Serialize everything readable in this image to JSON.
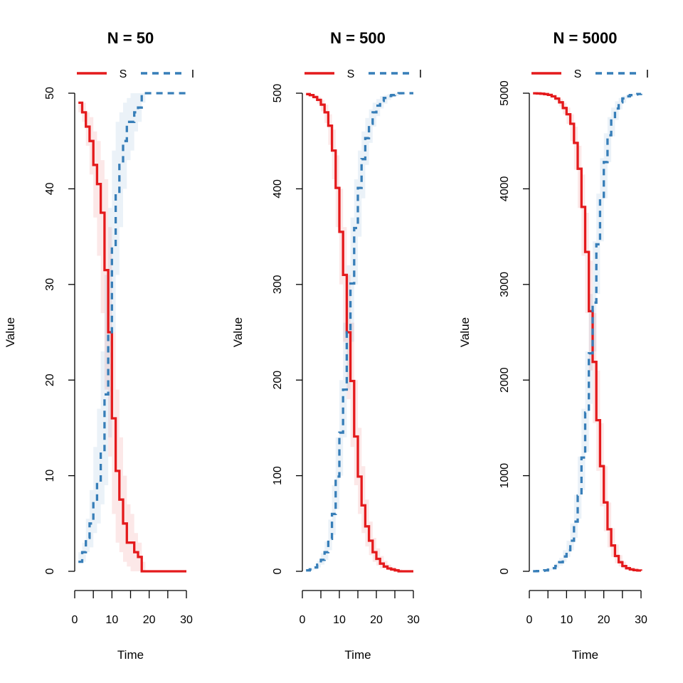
{
  "colors": {
    "S": "#E41A1C",
    "I": "#377EB8",
    "background": "#ffffff"
  },
  "chart_data": [
    {
      "type": "line",
      "title": "N = 50",
      "xlabel": "Time",
      "ylabel": "Value",
      "xlim": [
        0,
        30
      ],
      "ylim": [
        0,
        50
      ],
      "xticks": [
        "0",
        "10",
        "20",
        "30"
      ],
      "yticks": [
        "0",
        "10",
        "20",
        "30",
        "40",
        "50"
      ],
      "x_minor_ticks": [
        0,
        5,
        10,
        15,
        20,
        25,
        30
      ],
      "legend": {
        "position": "top",
        "entries": [
          "S",
          "I"
        ]
      },
      "series": [
        {
          "name": "S",
          "style": "solid step line with shaded band",
          "x": [
            1,
            2,
            3,
            4,
            5,
            6,
            7,
            8,
            9,
            10,
            11,
            12,
            13,
            14,
            15,
            16,
            17,
            18,
            19,
            20,
            21,
            22,
            23,
            24,
            25,
            26,
            27,
            28,
            29,
            30
          ],
          "values": [
            49,
            48,
            46.5,
            45,
            42.5,
            40.5,
            37.5,
            31.5,
            25,
            16,
            10.5,
            7.5,
            5,
            3,
            3,
            2,
            1.5,
            0,
            0,
            0,
            0,
            0,
            0,
            0,
            0,
            0,
            0,
            0,
            0,
            0
          ],
          "lower": [
            48,
            47,
            44.5,
            41.5,
            37,
            33,
            27,
            19,
            12,
            6,
            3,
            2,
            1,
            0.5,
            0,
            0,
            0,
            0,
            0,
            0,
            0,
            0,
            0,
            0,
            0,
            0,
            0,
            0,
            0,
            0
          ],
          "upper": [
            49,
            49,
            48,
            47.5,
            46,
            45,
            43,
            41,
            36,
            25,
            19,
            14,
            10,
            7,
            6,
            4,
            3,
            1,
            0,
            0,
            0,
            0,
            0,
            0,
            0,
            0,
            0,
            0,
            0,
            0
          ]
        },
        {
          "name": "I",
          "style": "dashed step line with shaded band",
          "x": [
            1,
            2,
            3,
            4,
            5,
            6,
            7,
            8,
            9,
            10,
            11,
            12,
            13,
            14,
            15,
            16,
            17,
            18,
            19,
            20,
            21,
            22,
            23,
            24,
            25,
            26,
            27,
            28,
            29,
            30
          ],
          "values": [
            1,
            2,
            3.5,
            5,
            7.5,
            9.5,
            12.5,
            18.5,
            25,
            34,
            39.5,
            42.5,
            45,
            47,
            47,
            48,
            48.5,
            50,
            50,
            50,
            50,
            50,
            50,
            50,
            50,
            50,
            50,
            50,
            50,
            50
          ],
          "lower": [
            1,
            1,
            2,
            2.5,
            4,
            5,
            7,
            9,
            14,
            25,
            31,
            36,
            40,
            43,
            44,
            46,
            47,
            49,
            50,
            50,
            50,
            50,
            50,
            50,
            50,
            50,
            50,
            50,
            50,
            50
          ],
          "upper": [
            2,
            3,
            5.5,
            8.5,
            13,
            17,
            23,
            31,
            38,
            44,
            47,
            48,
            49,
            49.5,
            50,
            50,
            50,
            50,
            50,
            50,
            50,
            50,
            50,
            50,
            50,
            50,
            50,
            50,
            50,
            50
          ]
        }
      ]
    },
    {
      "type": "line",
      "title": "N = 500",
      "xlabel": "Time",
      "ylabel": "Value",
      "xlim": [
        0,
        30
      ],
      "ylim": [
        0,
        500
      ],
      "xticks": [
        "0",
        "10",
        "20",
        "30"
      ],
      "yticks": [
        "0",
        "100",
        "200",
        "300",
        "400",
        "500"
      ],
      "x_minor_ticks": [
        0,
        5,
        10,
        15,
        20,
        25,
        30
      ],
      "legend": {
        "position": "top",
        "entries": [
          "S",
          "I"
        ]
      },
      "series": [
        {
          "name": "S",
          "style": "solid step line with shaded band",
          "x": [
            1,
            2,
            3,
            4,
            5,
            6,
            7,
            8,
            9,
            10,
            11,
            12,
            13,
            14,
            15,
            16,
            17,
            18,
            19,
            20,
            21,
            22,
            23,
            24,
            25,
            26,
            27,
            28,
            29,
            30
          ],
          "values": [
            499,
            498,
            496,
            493,
            488,
            480,
            466,
            440,
            401,
            355,
            310,
            250,
            199,
            141,
            99,
            69,
            47,
            32,
            20,
            13,
            8,
            5,
            3,
            2,
            1,
            0,
            0,
            0,
            0,
            0
          ],
          "lower": [
            499,
            497,
            494,
            489,
            481,
            469,
            446,
            410,
            360,
            300,
            240,
            180,
            130,
            90,
            60,
            40,
            26,
            17,
            10,
            6,
            3,
            2,
            1,
            0,
            0,
            0,
            0,
            0,
            0,
            0
          ],
          "upper": [
            500,
            499,
            498,
            496,
            493,
            488,
            478,
            462,
            435,
            400,
            360,
            310,
            260,
            200,
            150,
            110,
            75,
            52,
            35,
            24,
            16,
            11,
            7,
            4,
            3,
            2,
            1,
            0,
            0,
            0
          ]
        },
        {
          "name": "I",
          "style": "dashed step line with shaded band",
          "x": [
            1,
            2,
            3,
            4,
            5,
            6,
            7,
            8,
            9,
            10,
            11,
            12,
            13,
            14,
            15,
            16,
            17,
            18,
            19,
            20,
            21,
            22,
            23,
            24,
            25,
            26,
            27,
            28,
            29,
            30
          ],
          "values": [
            1,
            2,
            4,
            7,
            12,
            20,
            34,
            60,
            99,
            145,
            190,
            250,
            301,
            359,
            401,
            431,
            453,
            468,
            480,
            487,
            492,
            495,
            497,
            498,
            499,
            500,
            500,
            500,
            500,
            500
          ],
          "lower": [
            0,
            1,
            2,
            4,
            7,
            12,
            22,
            38,
            65,
            100,
            140,
            190,
            240,
            300,
            350,
            390,
            425,
            448,
            465,
            476,
            484,
            489,
            493,
            496,
            497,
            498,
            499,
            500,
            500,
            500
          ],
          "upper": [
            1,
            3,
            6,
            11,
            19,
            31,
            54,
            90,
            140,
            200,
            260,
            320,
            370,
            410,
            440,
            460,
            474,
            483,
            490,
            494,
            497,
            498,
            499,
            500,
            500,
            500,
            500,
            500,
            500,
            500
          ]
        }
      ]
    },
    {
      "type": "line",
      "title": "N = 5000",
      "xlabel": "Time",
      "ylabel": "Value",
      "xlim": [
        0,
        30
      ],
      "ylim": [
        0,
        5000
      ],
      "xticks": [
        "0",
        "10",
        "20",
        "30"
      ],
      "yticks": [
        "0",
        "1000",
        "2000",
        "3000",
        "4000",
        "5000"
      ],
      "x_minor_ticks": [
        0,
        5,
        10,
        15,
        20,
        25,
        30
      ],
      "legend": {
        "position": "top",
        "entries": [
          "S",
          "I"
        ]
      },
      "series": [
        {
          "name": "S",
          "style": "solid step line with shaded band",
          "x": [
            1,
            2,
            3,
            4,
            5,
            6,
            7,
            8,
            9,
            10,
            11,
            12,
            13,
            14,
            15,
            16,
            17,
            18,
            19,
            20,
            21,
            22,
            23,
            24,
            25,
            26,
            27,
            28,
            29,
            30
          ],
          "values": [
            4999,
            4998,
            4995,
            4990,
            4982,
            4967,
            4944,
            4905,
            4845,
            4780,
            4680,
            4480,
            4210,
            3810,
            3340,
            2720,
            2190,
            1580,
            1100,
            720,
            440,
            270,
            160,
            95,
            55,
            32,
            20,
            13,
            8,
            5
          ],
          "lower": [
            4998,
            4996,
            4992,
            4985,
            4972,
            4950,
            4915,
            4860,
            4780,
            4680,
            4500,
            4200,
            3800,
            3300,
            2700,
            2100,
            1550,
            1050,
            680,
            420,
            250,
            150,
            85,
            50,
            28,
            16,
            10,
            6,
            3,
            2
          ],
          "upper": [
            5000,
            4999,
            4998,
            4995,
            4990,
            4980,
            4965,
            4940,
            4900,
            4850,
            4780,
            4650,
            4450,
            4150,
            3750,
            3250,
            2700,
            2100,
            1550,
            1100,
            720,
            450,
            280,
            170,
            100,
            60,
            36,
            22,
            14,
            9
          ]
        },
        {
          "name": "I",
          "style": "dashed step line with shaded band",
          "x": [
            1,
            2,
            3,
            4,
            5,
            6,
            7,
            8,
            9,
            10,
            11,
            12,
            13,
            14,
            15,
            16,
            17,
            18,
            19,
            20,
            21,
            22,
            23,
            24,
            25,
            26,
            27,
            28,
            29,
            30
          ],
          "values": [
            1,
            2,
            5,
            10,
            18,
            33,
            56,
            95,
            155,
            220,
            320,
            520,
            790,
            1190,
            1660,
            2280,
            2810,
            3420,
            3900,
            4280,
            4560,
            4730,
            4840,
            4905,
            4945,
            4968,
            4980,
            4987,
            4992,
            4995
          ],
          "lower": [
            0,
            1,
            2,
            5,
            10,
            20,
            35,
            60,
            100,
            150,
            220,
            350,
            550,
            850,
            1250,
            1750,
            2300,
            2900,
            3450,
            3900,
            4280,
            4550,
            4720,
            4830,
            4900,
            4940,
            4964,
            4978,
            4986,
            4991
          ],
          "upper": [
            2,
            4,
            8,
            15,
            28,
            50,
            85,
            140,
            220,
            320,
            500,
            800,
            1200,
            1700,
            2300,
            2900,
            3450,
            3950,
            4320,
            4580,
            4750,
            4850,
            4915,
            4950,
            4972,
            4984,
            4990,
            4994,
            4997,
            4998
          ]
        }
      ]
    }
  ]
}
